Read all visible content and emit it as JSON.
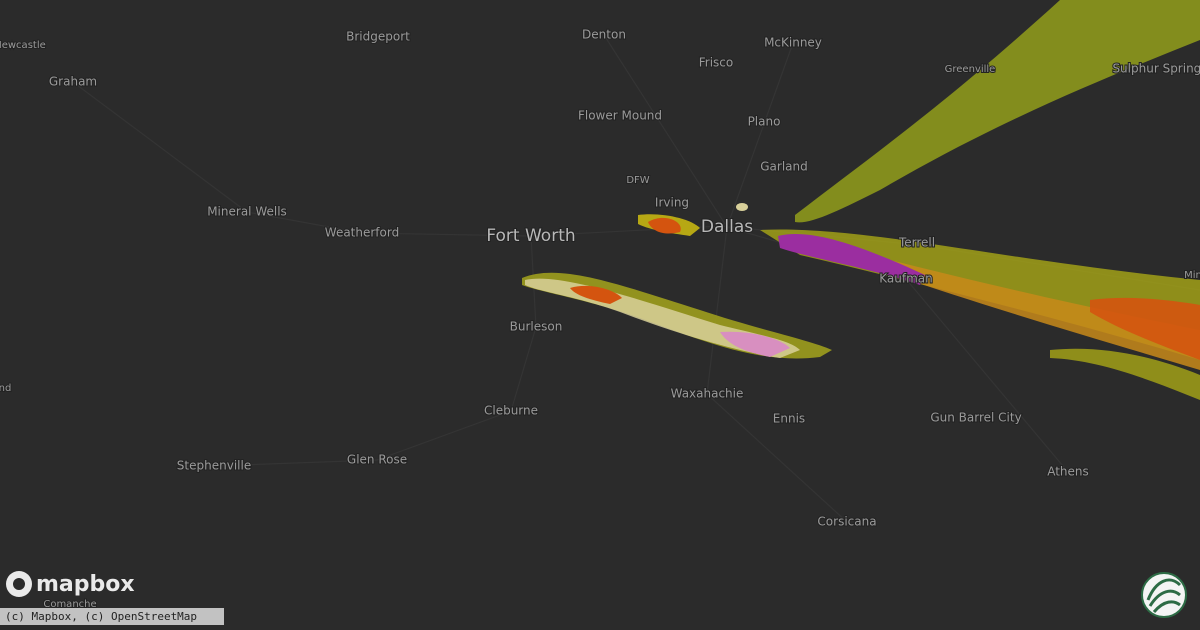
{
  "map": {
    "labels": [
      "Newcastle",
      "Graham",
      "Bridgeport",
      "Denton",
      "McKinney",
      "Frisco",
      "Flower Mound",
      "Plano",
      "Greenville",
      "Sulphur Springs",
      "Garland",
      "DFW",
      "Irving",
      "Dallas",
      "Fort Worth",
      "Mineral Wells",
      "Weatherford",
      "Terrell",
      "Kaufman",
      "Burleson",
      "Waxahachie",
      "Cleburne",
      "Ennis",
      "Gun Barrel City",
      "Stephenville",
      "Glen Rose",
      "Athens",
      "Corsicana",
      "Comanche",
      "nd",
      "Min"
    ]
  },
  "logo": "mapbox",
  "attribution": "(c) Mapbox, (c) OpenStreetMap"
}
